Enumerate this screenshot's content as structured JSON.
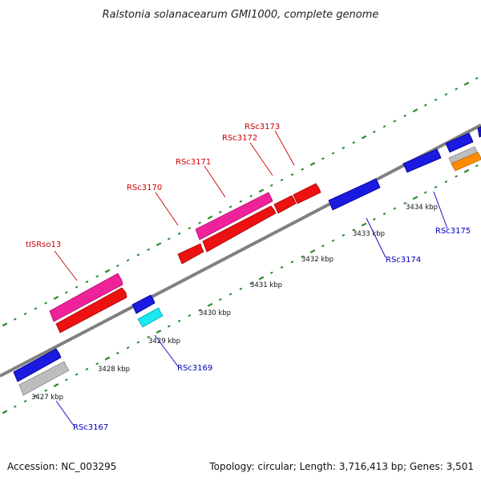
{
  "title": "Ralstonia solanacearum GMI1000, complete genome",
  "footer": {
    "accession": "Accession: NC_003295",
    "topology": "Topology: circular; Length: 3,716,413 bp; Genes: 3,501"
  },
  "colors": {
    "backbone": "#808080",
    "tick": "#2a8a2a",
    "blue_gene": "#1a1ae0",
    "red_gene": "#ee1111",
    "pink_gene": "#ee2299",
    "gray_gene": "#bdbdbd",
    "cyan_gene": "#18e8f0",
    "orange_gene": "#ff8c00",
    "label_red": "#cc0000",
    "label_blue": "#0000bb"
  },
  "ticks": [
    {
      "label": "3427 kbp"
    },
    {
      "label": "3428 kbp"
    },
    {
      "label": "3429 kbp"
    },
    {
      "label": "3430 kbp"
    },
    {
      "label": "3431 kbp"
    },
    {
      "label": "3432 kbp"
    },
    {
      "label": "3433 kbp"
    },
    {
      "label": "3434 kbp"
    }
  ],
  "gene_labels": [
    {
      "text": "tISRso13",
      "strand": "forward"
    },
    {
      "text": "RSc3170",
      "strand": "forward"
    },
    {
      "text": "RSc3171",
      "strand": "forward"
    },
    {
      "text": "RSc3172",
      "strand": "forward"
    },
    {
      "text": "RSc3173",
      "strand": "forward"
    },
    {
      "text": "RSc3167",
      "strand": "reverse"
    },
    {
      "text": "RSc3169",
      "strand": "reverse"
    },
    {
      "text": "RSc3174",
      "strand": "reverse"
    },
    {
      "text": "RSc3175",
      "strand": "reverse"
    }
  ]
}
